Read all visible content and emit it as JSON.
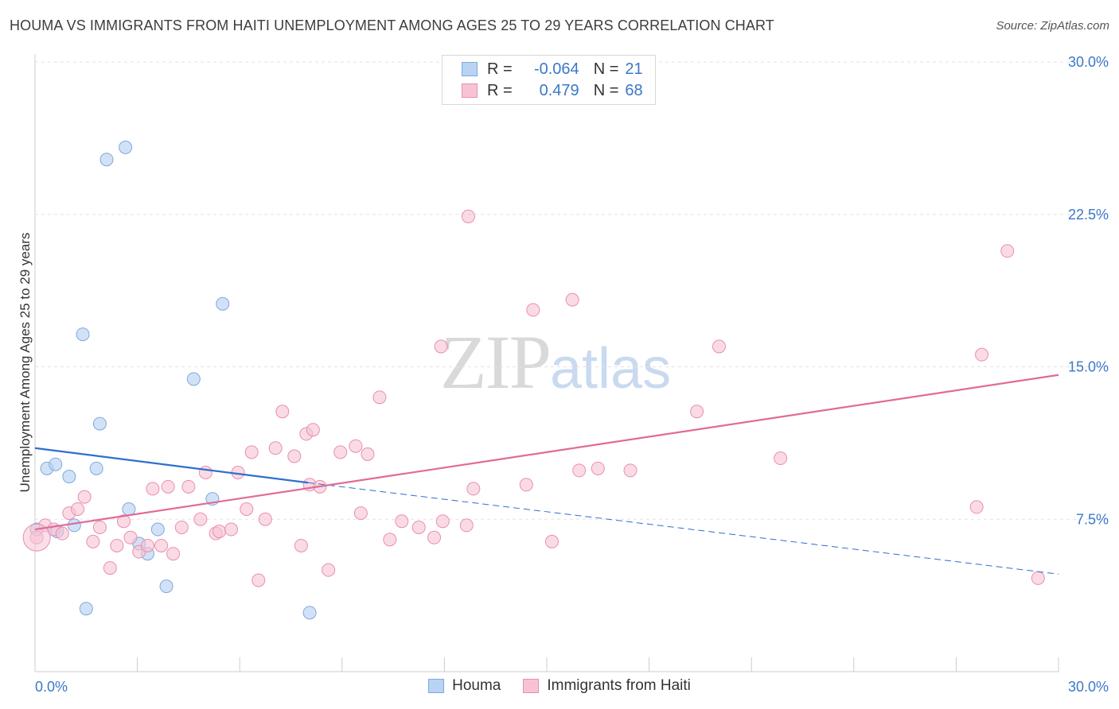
{
  "title": "HOUMA VS IMMIGRANTS FROM HAITI UNEMPLOYMENT AMONG AGES 25 TO 29 YEARS CORRELATION CHART",
  "source": "Source: ZipAtlas.com",
  "watermark": {
    "zip": "ZIP",
    "atlas": "atlas"
  },
  "legend": {
    "rows": [
      {
        "r_label": "R =",
        "r_value": "-0.064",
        "n_label": "N =",
        "n_value": "21"
      },
      {
        "r_label": "R =",
        "r_value": "0.479",
        "n_label": "N =",
        "n_value": "68"
      }
    ]
  },
  "bottom_legend": [
    "Houma",
    "Immigrants from Haiti"
  ],
  "colors": {
    "houma_fill": "#b9d3f2",
    "houma_stroke": "#7fa8de",
    "houma_line": "#2d6fd0",
    "haiti_fill": "#f7c3d3",
    "haiti_stroke": "#e98eae",
    "haiti_line": "#e06b96",
    "tick_label": "#3b78c7",
    "grid": "#e3e3e3"
  },
  "chart_data": {
    "type": "scatter",
    "title": "HOUMA VS IMMIGRANTS FROM HAITI UNEMPLOYMENT AMONG AGES 25 TO 29 YEARS CORRELATION CHART",
    "xlabel": "",
    "ylabel": "Unemployment Among Ages 25 to 29 years",
    "xlim": [
      0,
      30
    ],
    "ylim": [
      0,
      30
    ],
    "x_tick_labels": [
      "0.0%",
      "30.0%"
    ],
    "y_ticks": [
      7.5,
      15.0,
      22.5,
      30.0
    ],
    "y_tick_labels": [
      "7.5%",
      "15.0%",
      "22.5%",
      "30.0%"
    ],
    "grid": "horizontal dashed",
    "legend_position": "top-center",
    "series": [
      {
        "name": "Houma",
        "points": [
          [
            0.05,
            7.0
          ],
          [
            0.35,
            10.0
          ],
          [
            0.6,
            10.2
          ],
          [
            0.65,
            6.9
          ],
          [
            1.0,
            9.6
          ],
          [
            1.15,
            7.2
          ],
          [
            1.4,
            16.6
          ],
          [
            1.5,
            3.1
          ],
          [
            1.8,
            10.0
          ],
          [
            1.9,
            12.2
          ],
          [
            2.1,
            25.2
          ],
          [
            2.65,
            25.8
          ],
          [
            2.75,
            8.0
          ],
          [
            3.05,
            6.3
          ],
          [
            3.3,
            5.8
          ],
          [
            3.6,
            7.0
          ],
          [
            3.85,
            4.2
          ],
          [
            4.65,
            14.4
          ],
          [
            5.2,
            8.5
          ],
          [
            5.5,
            18.1
          ],
          [
            8.05,
            2.9
          ]
        ],
        "trend": {
          "x": [
            0,
            8.0
          ],
          "y": [
            11.0,
            9.3
          ],
          "dashed_extension": {
            "x": [
              8.0,
              30.0
            ],
            "y": [
              9.3,
              4.8
            ]
          }
        }
      },
      {
        "name": "Immigrants from Haiti",
        "points": [
          [
            0.05,
            6.6
          ],
          [
            0.3,
            7.2
          ],
          [
            0.55,
            7.0
          ],
          [
            0.8,
            6.8
          ],
          [
            1.0,
            7.8
          ],
          [
            1.25,
            8.0
          ],
          [
            1.45,
            8.6
          ],
          [
            1.7,
            6.4
          ],
          [
            1.9,
            7.1
          ],
          [
            2.2,
            5.1
          ],
          [
            2.4,
            6.2
          ],
          [
            2.6,
            7.4
          ],
          [
            2.8,
            6.6
          ],
          [
            3.05,
            5.9
          ],
          [
            3.3,
            6.2
          ],
          [
            3.45,
            9.0
          ],
          [
            3.7,
            6.2
          ],
          [
            3.9,
            9.1
          ],
          [
            4.05,
            5.8
          ],
          [
            4.3,
            7.1
          ],
          [
            4.5,
            9.1
          ],
          [
            4.85,
            7.5
          ],
          [
            5.0,
            9.8
          ],
          [
            5.3,
            6.8
          ],
          [
            5.4,
            6.9
          ],
          [
            5.75,
            7.0
          ],
          [
            5.95,
            9.8
          ],
          [
            6.2,
            8.0
          ],
          [
            6.35,
            10.8
          ],
          [
            6.55,
            4.5
          ],
          [
            6.75,
            7.5
          ],
          [
            7.05,
            11.0
          ],
          [
            7.25,
            12.8
          ],
          [
            7.6,
            10.6
          ],
          [
            7.8,
            6.2
          ],
          [
            7.95,
            11.7
          ],
          [
            8.05,
            9.2
          ],
          [
            8.15,
            11.9
          ],
          [
            8.35,
            9.1
          ],
          [
            8.6,
            5.0
          ],
          [
            8.95,
            10.8
          ],
          [
            9.4,
            11.1
          ],
          [
            9.55,
            7.8
          ],
          [
            9.75,
            10.7
          ],
          [
            10.1,
            13.5
          ],
          [
            10.4,
            6.5
          ],
          [
            10.75,
            7.4
          ],
          [
            11.25,
            7.1
          ],
          [
            11.7,
            6.6
          ],
          [
            11.9,
            16.0
          ],
          [
            11.95,
            7.4
          ],
          [
            12.65,
            7.2
          ],
          [
            12.7,
            22.4
          ],
          [
            12.85,
            9.0
          ],
          [
            14.4,
            9.2
          ],
          [
            14.6,
            17.8
          ],
          [
            15.15,
            6.4
          ],
          [
            15.75,
            18.3
          ],
          [
            15.95,
            9.9
          ],
          [
            16.5,
            10.0
          ],
          [
            17.45,
            9.9
          ],
          [
            19.4,
            12.8
          ],
          [
            20.05,
            16.0
          ],
          [
            21.85,
            10.5
          ],
          [
            27.6,
            8.1
          ],
          [
            27.75,
            15.6
          ],
          [
            28.5,
            20.7
          ],
          [
            29.4,
            4.6
          ]
        ],
        "trend": {
          "x": [
            0,
            30.0
          ],
          "y": [
            7.0,
            14.6
          ]
        }
      }
    ]
  }
}
